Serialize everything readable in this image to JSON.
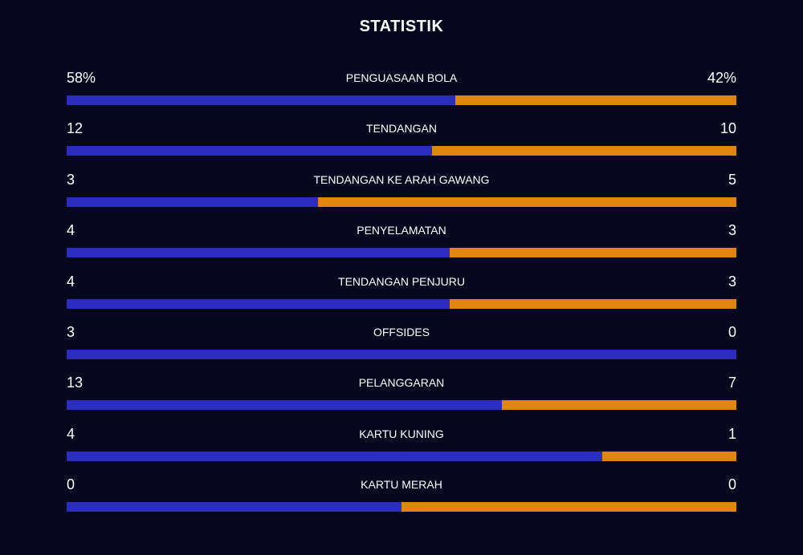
{
  "title": "STATISTIK",
  "stats": [
    {
      "label": "PENGUASAAN BOLA",
      "home": 58,
      "away": 42,
      "home_label": "58%",
      "away_label": "42%"
    },
    {
      "label": "TENDANGAN",
      "home": 12,
      "away": 10
    },
    {
      "label": "TENDANGAN KE ARAH GAWANG",
      "home": 3,
      "away": 5
    },
    {
      "label": "PENYELAMATAN",
      "home": 4,
      "away": 3
    },
    {
      "label": "TENDANGAN PENJURU",
      "home": 4,
      "away": 3
    },
    {
      "label": "OFFSIDES",
      "home": 3,
      "away": 0
    },
    {
      "label": "PELANGGARAN",
      "home": 13,
      "away": 7
    },
    {
      "label": "KARTU KUNING",
      "home": 4,
      "away": 1
    },
    {
      "label": "KARTU MERAH",
      "home": 0,
      "away": 0
    }
  ]
}
